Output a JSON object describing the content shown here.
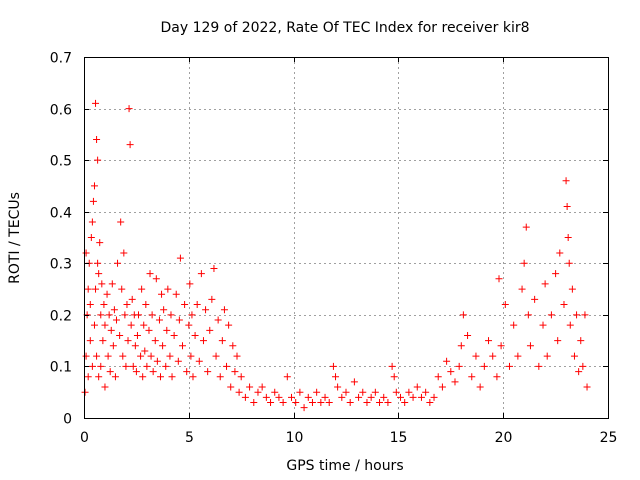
{
  "chart_data": {
    "type": "scatter",
    "title": "Day 129 of 2022, Rate Of TEC Index for receiver kir8",
    "xlabel": "GPS time / hours",
    "ylabel": "ROTI / TECUs",
    "xlim": [
      0,
      25
    ],
    "ylim": [
      0,
      0.7
    ],
    "x_ticks": [
      0,
      5,
      10,
      15,
      20,
      25
    ],
    "y_ticks": [
      0,
      0.1,
      0.2,
      0.3,
      0.4,
      0.5,
      0.6,
      0.7
    ],
    "x_tick_labels": [
      "0",
      "5",
      "10",
      "15",
      "20",
      "25"
    ],
    "y_tick_labels": [
      "0",
      "0.1",
      "0.2",
      "0.3",
      "0.4",
      "0.5",
      "0.6",
      "0.7"
    ],
    "grid": true,
    "legend": "none",
    "marker": "+",
    "color": "#ff0000",
    "series": [
      {
        "x": [
          0.05,
          0.1,
          0.1,
          0.15,
          0.2,
          0.2,
          0.25,
          0.3,
          0.3,
          0.35,
          0.4,
          0.4,
          0.45,
          0.5,
          0.5,
          0.55,
          0.55,
          0.6,
          0.6,
          0.65,
          0.65,
          0.7,
          0.7,
          0.75,
          0.8,
          0.8,
          0.85,
          0.9,
          0.95,
          1.0,
          1.0,
          1.1,
          1.15,
          1.2,
          1.25,
          1.3,
          1.35,
          1.4,
          1.45,
          1.5,
          1.55,
          1.6,
          1.7,
          1.75,
          1.8,
          1.85,
          1.9,
          1.95,
          2.0,
          2.05,
          2.1,
          2.15,
          2.2,
          2.25,
          2.3,
          2.35,
          2.4,
          2.45,
          2.5,
          2.55,
          2.6,
          2.7,
          2.75,
          2.8,
          2.85,
          2.9,
          2.95,
          3.0,
          3.1,
          3.15,
          3.2,
          3.25,
          3.3,
          3.4,
          3.45,
          3.5,
          3.6,
          3.65,
          3.7,
          3.75,
          3.8,
          3.9,
          3.95,
          4.0,
          4.1,
          4.15,
          4.2,
          4.3,
          4.4,
          4.5,
          4.55,
          4.6,
          4.7,
          4.8,
          4.9,
          5.0,
          5.05,
          5.1,
          5.15,
          5.2,
          5.3,
          5.4,
          5.5,
          5.6,
          5.7,
          5.8,
          5.9,
          6.0,
          6.1,
          6.2,
          6.3,
          6.4,
          6.5,
          6.6,
          6.7,
          6.8,
          6.9,
          7.0,
          7.1,
          7.2,
          7.3,
          7.4,
          7.5,
          7.7,
          7.9,
          8.1,
          8.3,
          8.5,
          8.7,
          8.9,
          9.1,
          9.3,
          9.5,
          9.7,
          9.9,
          10.1,
          10.3,
          10.5,
          10.7,
          10.9,
          11.1,
          11.3,
          11.5,
          11.7,
          11.9,
          12.0,
          12.1,
          12.3,
          12.5,
          12.7,
          12.9,
          13.1,
          13.3,
          13.5,
          13.7,
          13.9,
          14.1,
          14.3,
          14.5,
          14.7,
          14.8,
          14.9,
          15.1,
          15.3,
          15.5,
          15.7,
          15.9,
          16.1,
          16.3,
          16.5,
          16.7,
          16.9,
          17.1,
          17.3,
          17.5,
          17.7,
          17.9,
          18.0,
          18.1,
          18.3,
          18.5,
          18.7,
          18.9,
          19.1,
          19.3,
          19.5,
          19.7,
          19.8,
          19.9,
          20.1,
          20.3,
          20.5,
          20.7,
          20.9,
          21.0,
          21.1,
          21.2,
          21.3,
          21.5,
          21.7,
          21.9,
          22.0,
          22.1,
          22.3,
          22.5,
          22.6,
          22.7,
          22.9,
          23.0,
          23.05,
          23.1,
          23.15,
          23.2,
          23.3,
          23.4,
          23.5,
          23.6,
          23.7,
          23.8,
          23.9,
          24.0
        ],
        "y": [
          0.05,
          0.12,
          0.32,
          0.2,
          0.25,
          0.08,
          0.3,
          0.15,
          0.22,
          0.35,
          0.38,
          0.1,
          0.42,
          0.45,
          0.18,
          0.61,
          0.25,
          0.54,
          0.12,
          0.5,
          0.3,
          0.28,
          0.08,
          0.34,
          0.2,
          0.1,
          0.26,
          0.15,
          0.22,
          0.18,
          0.06,
          0.24,
          0.12,
          0.2,
          0.09,
          0.17,
          0.26,
          0.14,
          0.21,
          0.08,
          0.19,
          0.3,
          0.16,
          0.38,
          0.25,
          0.12,
          0.32,
          0.2,
          0.1,
          0.22,
          0.15,
          0.6,
          0.53,
          0.18,
          0.23,
          0.1,
          0.2,
          0.14,
          0.09,
          0.16,
          0.2,
          0.12,
          0.25,
          0.08,
          0.18,
          0.13,
          0.22,
          0.1,
          0.17,
          0.28,
          0.12,
          0.2,
          0.09,
          0.15,
          0.27,
          0.11,
          0.19,
          0.08,
          0.24,
          0.14,
          0.21,
          0.1,
          0.17,
          0.25,
          0.12,
          0.2,
          0.08,
          0.16,
          0.24,
          0.11,
          0.19,
          0.31,
          0.14,
          0.22,
          0.09,
          0.18,
          0.26,
          0.12,
          0.2,
          0.08,
          0.16,
          0.22,
          0.11,
          0.28,
          0.15,
          0.21,
          0.09,
          0.17,
          0.23,
          0.29,
          0.12,
          0.19,
          0.08,
          0.15,
          0.21,
          0.1,
          0.18,
          0.06,
          0.14,
          0.09,
          0.12,
          0.05,
          0.08,
          0.04,
          0.06,
          0.03,
          0.05,
          0.06,
          0.04,
          0.03,
          0.05,
          0.04,
          0.03,
          0.08,
          0.04,
          0.03,
          0.05,
          0.02,
          0.04,
          0.03,
          0.05,
          0.03,
          0.04,
          0.03,
          0.1,
          0.08,
          0.06,
          0.04,
          0.05,
          0.03,
          0.07,
          0.04,
          0.05,
          0.03,
          0.04,
          0.05,
          0.03,
          0.04,
          0.03,
          0.1,
          0.08,
          0.05,
          0.04,
          0.03,
          0.05,
          0.04,
          0.06,
          0.04,
          0.05,
          0.03,
          0.04,
          0.08,
          0.06,
          0.11,
          0.09,
          0.07,
          0.1,
          0.14,
          0.2,
          0.16,
          0.08,
          0.12,
          0.06,
          0.1,
          0.15,
          0.12,
          0.08,
          0.27,
          0.14,
          0.22,
          0.1,
          0.18,
          0.12,
          0.25,
          0.3,
          0.37,
          0.2,
          0.14,
          0.23,
          0.1,
          0.18,
          0.26,
          0.12,
          0.2,
          0.28,
          0.15,
          0.32,
          0.22,
          0.46,
          0.41,
          0.35,
          0.3,
          0.18,
          0.25,
          0.12,
          0.2,
          0.09,
          0.15,
          0.1,
          0.2,
          0.06
        ]
      }
    ]
  }
}
